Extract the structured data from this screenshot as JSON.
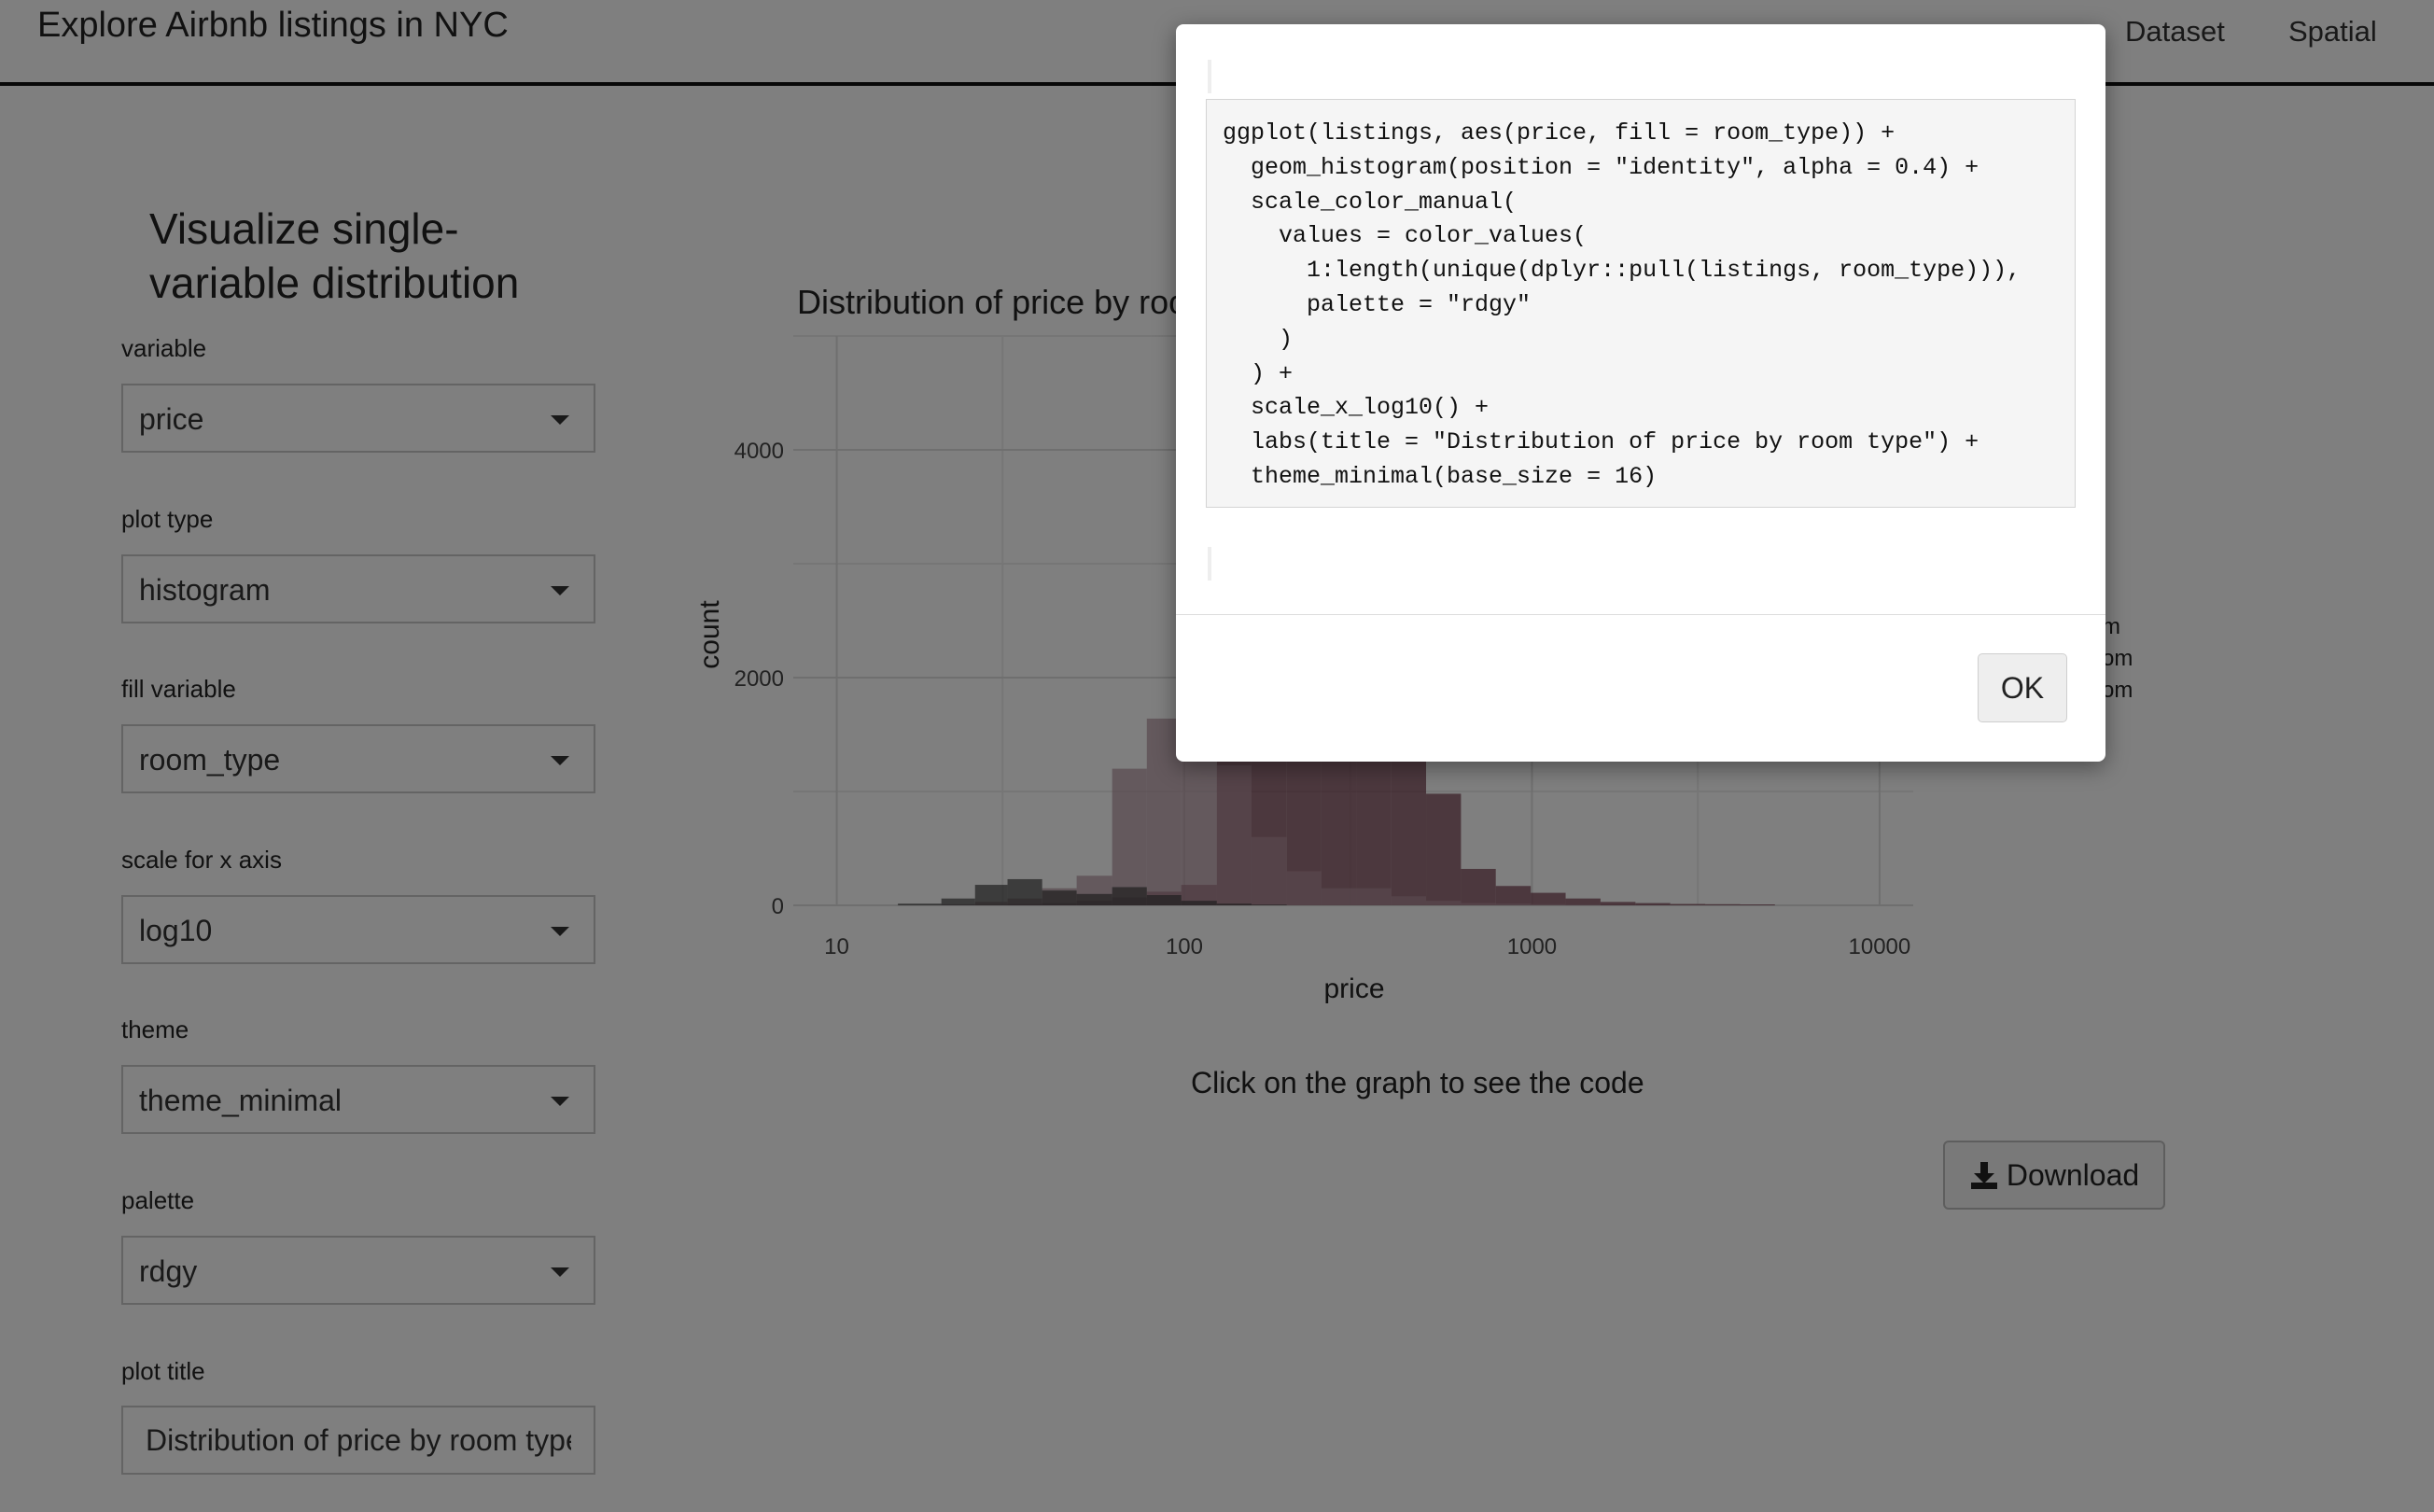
{
  "navbar": {
    "title": "Explore Airbnb listings in NYC",
    "items": [
      {
        "label": "Dataset"
      },
      {
        "label": "Spatial"
      }
    ]
  },
  "sidebar": {
    "heading_line1": "Visualize single-",
    "heading_line2": "variable distribution",
    "fields": [
      {
        "label": "variable",
        "value": "price"
      },
      {
        "label": "plot type",
        "value": "histogram"
      },
      {
        "label": "fill variable",
        "value": "room_type"
      },
      {
        "label": "scale for x axis",
        "value": "log10"
      },
      {
        "label": "theme",
        "value": "theme_minimal"
      },
      {
        "label": "palette",
        "value": "rdgy"
      }
    ],
    "plot_title": {
      "label": "plot title",
      "value": "Distribution of price by room type"
    }
  },
  "chart_data": {
    "type": "bar",
    "title": "Distribution of price by room type",
    "xlabel": "price",
    "ylabel": "count",
    "x_scale": "log10",
    "xlim": [
      7.5,
      12500
    ],
    "ylim": [
      0,
      5000
    ],
    "x_ticks": [
      "10",
      "100",
      "1000",
      "10000"
    ],
    "y_ticks": [
      "0",
      "2000",
      "4000"
    ],
    "legend_partial": [
      "m",
      "om",
      "om"
    ],
    "series": [
      {
        "color": "#6d3545",
        "bins": [
          [
            20,
            25,
            0
          ],
          [
            25,
            31,
            5
          ],
          [
            31,
            39,
            10
          ],
          [
            39,
            49,
            20
          ],
          [
            49,
            62,
            40
          ],
          [
            62,
            78,
            70
          ],
          [
            78,
            98,
            120
          ],
          [
            98,
            124,
            180
          ],
          [
            124,
            156,
            2000
          ],
          [
            156,
            197,
            3100
          ],
          [
            197,
            248,
            2900
          ],
          [
            248,
            312,
            2600
          ],
          [
            312,
            394,
            2100
          ],
          [
            394,
            496,
            1500
          ],
          [
            496,
            625,
            980
          ],
          [
            625,
            787,
            320
          ],
          [
            787,
            992,
            170
          ],
          [
            992,
            1250,
            110
          ],
          [
            1250,
            1575,
            60
          ],
          [
            1575,
            1985,
            30
          ],
          [
            1985,
            2500,
            20
          ],
          [
            2500,
            3150,
            12
          ],
          [
            3150,
            3970,
            10
          ],
          [
            3970,
            5000,
            8
          ]
        ]
      },
      {
        "color": "#b0919c",
        "bins": [
          [
            20,
            25,
            10
          ],
          [
            25,
            31,
            30
          ],
          [
            31,
            39,
            60
          ],
          [
            39,
            49,
            150
          ],
          [
            49,
            62,
            260
          ],
          [
            62,
            78,
            1200
          ],
          [
            78,
            98,
            1640
          ],
          [
            98,
            124,
            1640
          ],
          [
            124,
            156,
            1230
          ],
          [
            156,
            197,
            600
          ],
          [
            197,
            248,
            300
          ],
          [
            248,
            312,
            150
          ],
          [
            312,
            394,
            150
          ],
          [
            394,
            496,
            80
          ],
          [
            496,
            625,
            40
          ],
          [
            625,
            787,
            20
          ],
          [
            787,
            992,
            15
          ],
          [
            992,
            1250,
            10
          ],
          [
            1250,
            1575,
            6
          ]
        ]
      },
      {
        "color": "#3f3f3f",
        "bins": [
          [
            15,
            20,
            15
          ],
          [
            20,
            25,
            60
          ],
          [
            25,
            31,
            180
          ],
          [
            31,
            39,
            230
          ],
          [
            39,
            49,
            130
          ],
          [
            49,
            62,
            100
          ],
          [
            62,
            78,
            160
          ],
          [
            78,
            98,
            90
          ],
          [
            98,
            124,
            40
          ],
          [
            124,
            156,
            15
          ],
          [
            156,
            197,
            6
          ]
        ]
      }
    ]
  },
  "chart_caption": "Click on the graph to see the code",
  "download_label": "Download",
  "modal": {
    "code_lines": [
      "ggplot(listings, aes(price, fill = room_type)) +",
      "  geom_histogram(position = \"identity\", alpha = 0.4) +",
      "  scale_color_manual(",
      "    values = color_values(",
      "      1:length(unique(dplyr::pull(listings, room_type))),",
      "      palette = \"rdgy\"",
      "    )",
      "  ) +",
      "  scale_x_log10() +",
      "  labs(title = \"Distribution of price by room type\") +",
      "  theme_minimal(base_size = 16)"
    ],
    "ok_label": "OK"
  }
}
